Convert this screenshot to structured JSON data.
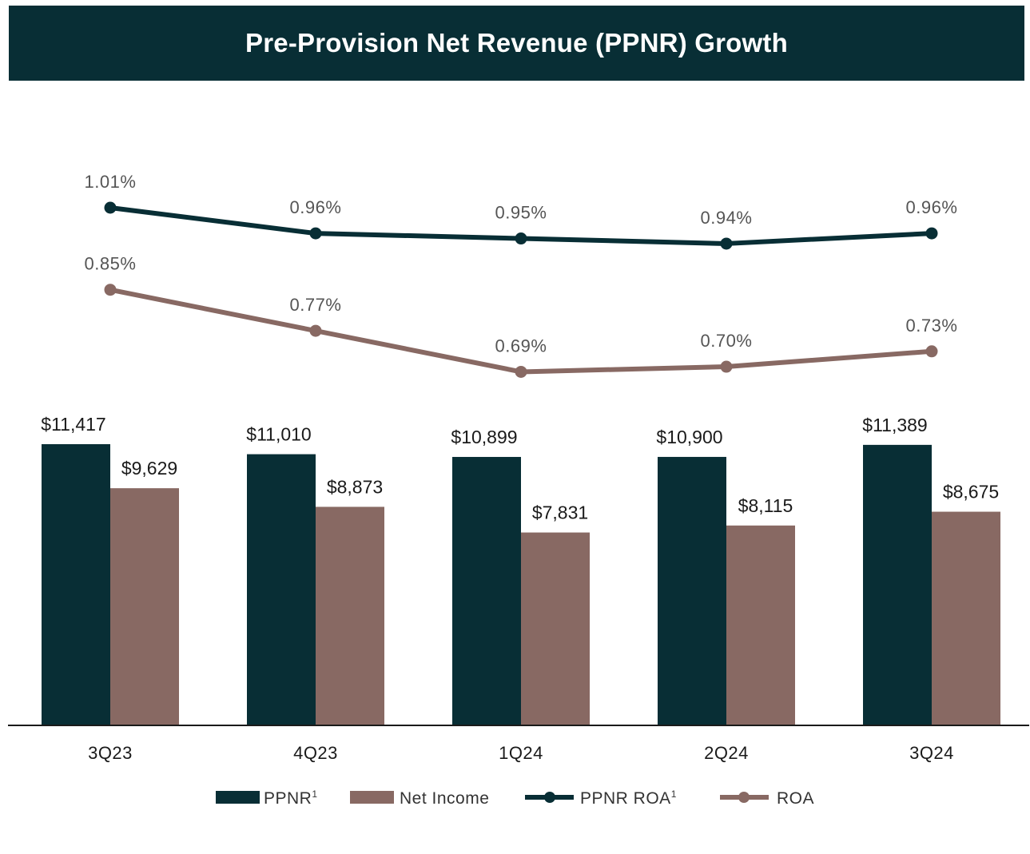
{
  "header": {
    "title": "Pre-Provision Net Revenue (PPNR) Growth"
  },
  "colors": {
    "header_bg": "#082e35",
    "ppnr": "#082e35",
    "net_income": "#886963",
    "axis": "#1a1a1a"
  },
  "chart_data": {
    "type": "bar",
    "title": "Pre-Provision Net Revenue (PPNR) Growth",
    "categories": [
      "3Q23",
      "4Q23",
      "1Q24",
      "2Q24",
      "3Q24"
    ],
    "series": [
      {
        "name": "PPNR",
        "superscript": "1",
        "kind": "bar",
        "color": "#082e35",
        "values": [
          11417,
          11010,
          10899,
          10900,
          11389
        ],
        "labels": [
          "$11,417",
          "$11,010",
          "$10,899",
          "$10,900",
          "$11,389"
        ]
      },
      {
        "name": "Net Income",
        "superscript": "",
        "kind": "bar",
        "color": "#886963",
        "values": [
          9629,
          8873,
          7831,
          8115,
          8675
        ],
        "labels": [
          "$9,629",
          "$8,873",
          "$7,831",
          "$8,115",
          "$8,675"
        ]
      },
      {
        "name": "PPNR ROA",
        "superscript": "1",
        "kind": "line",
        "color": "#082e35",
        "values": [
          1.01,
          0.96,
          0.95,
          0.94,
          0.96
        ],
        "labels": [
          "1.01%",
          "0.96%",
          "0.95%",
          "0.94%",
          "0.96%"
        ]
      },
      {
        "name": "ROA",
        "superscript": "",
        "kind": "line",
        "color": "#886963",
        "values": [
          0.85,
          0.77,
          0.69,
          0.7,
          0.73
        ],
        "labels": [
          "0.85%",
          "0.77%",
          "0.69%",
          "0.70%",
          "0.73%"
        ]
      }
    ],
    "ylim_bars": [
      0,
      12000
    ],
    "ylim_lines": [
      0.5,
      1.2
    ],
    "legend": "bottom-center",
    "grid": false
  }
}
